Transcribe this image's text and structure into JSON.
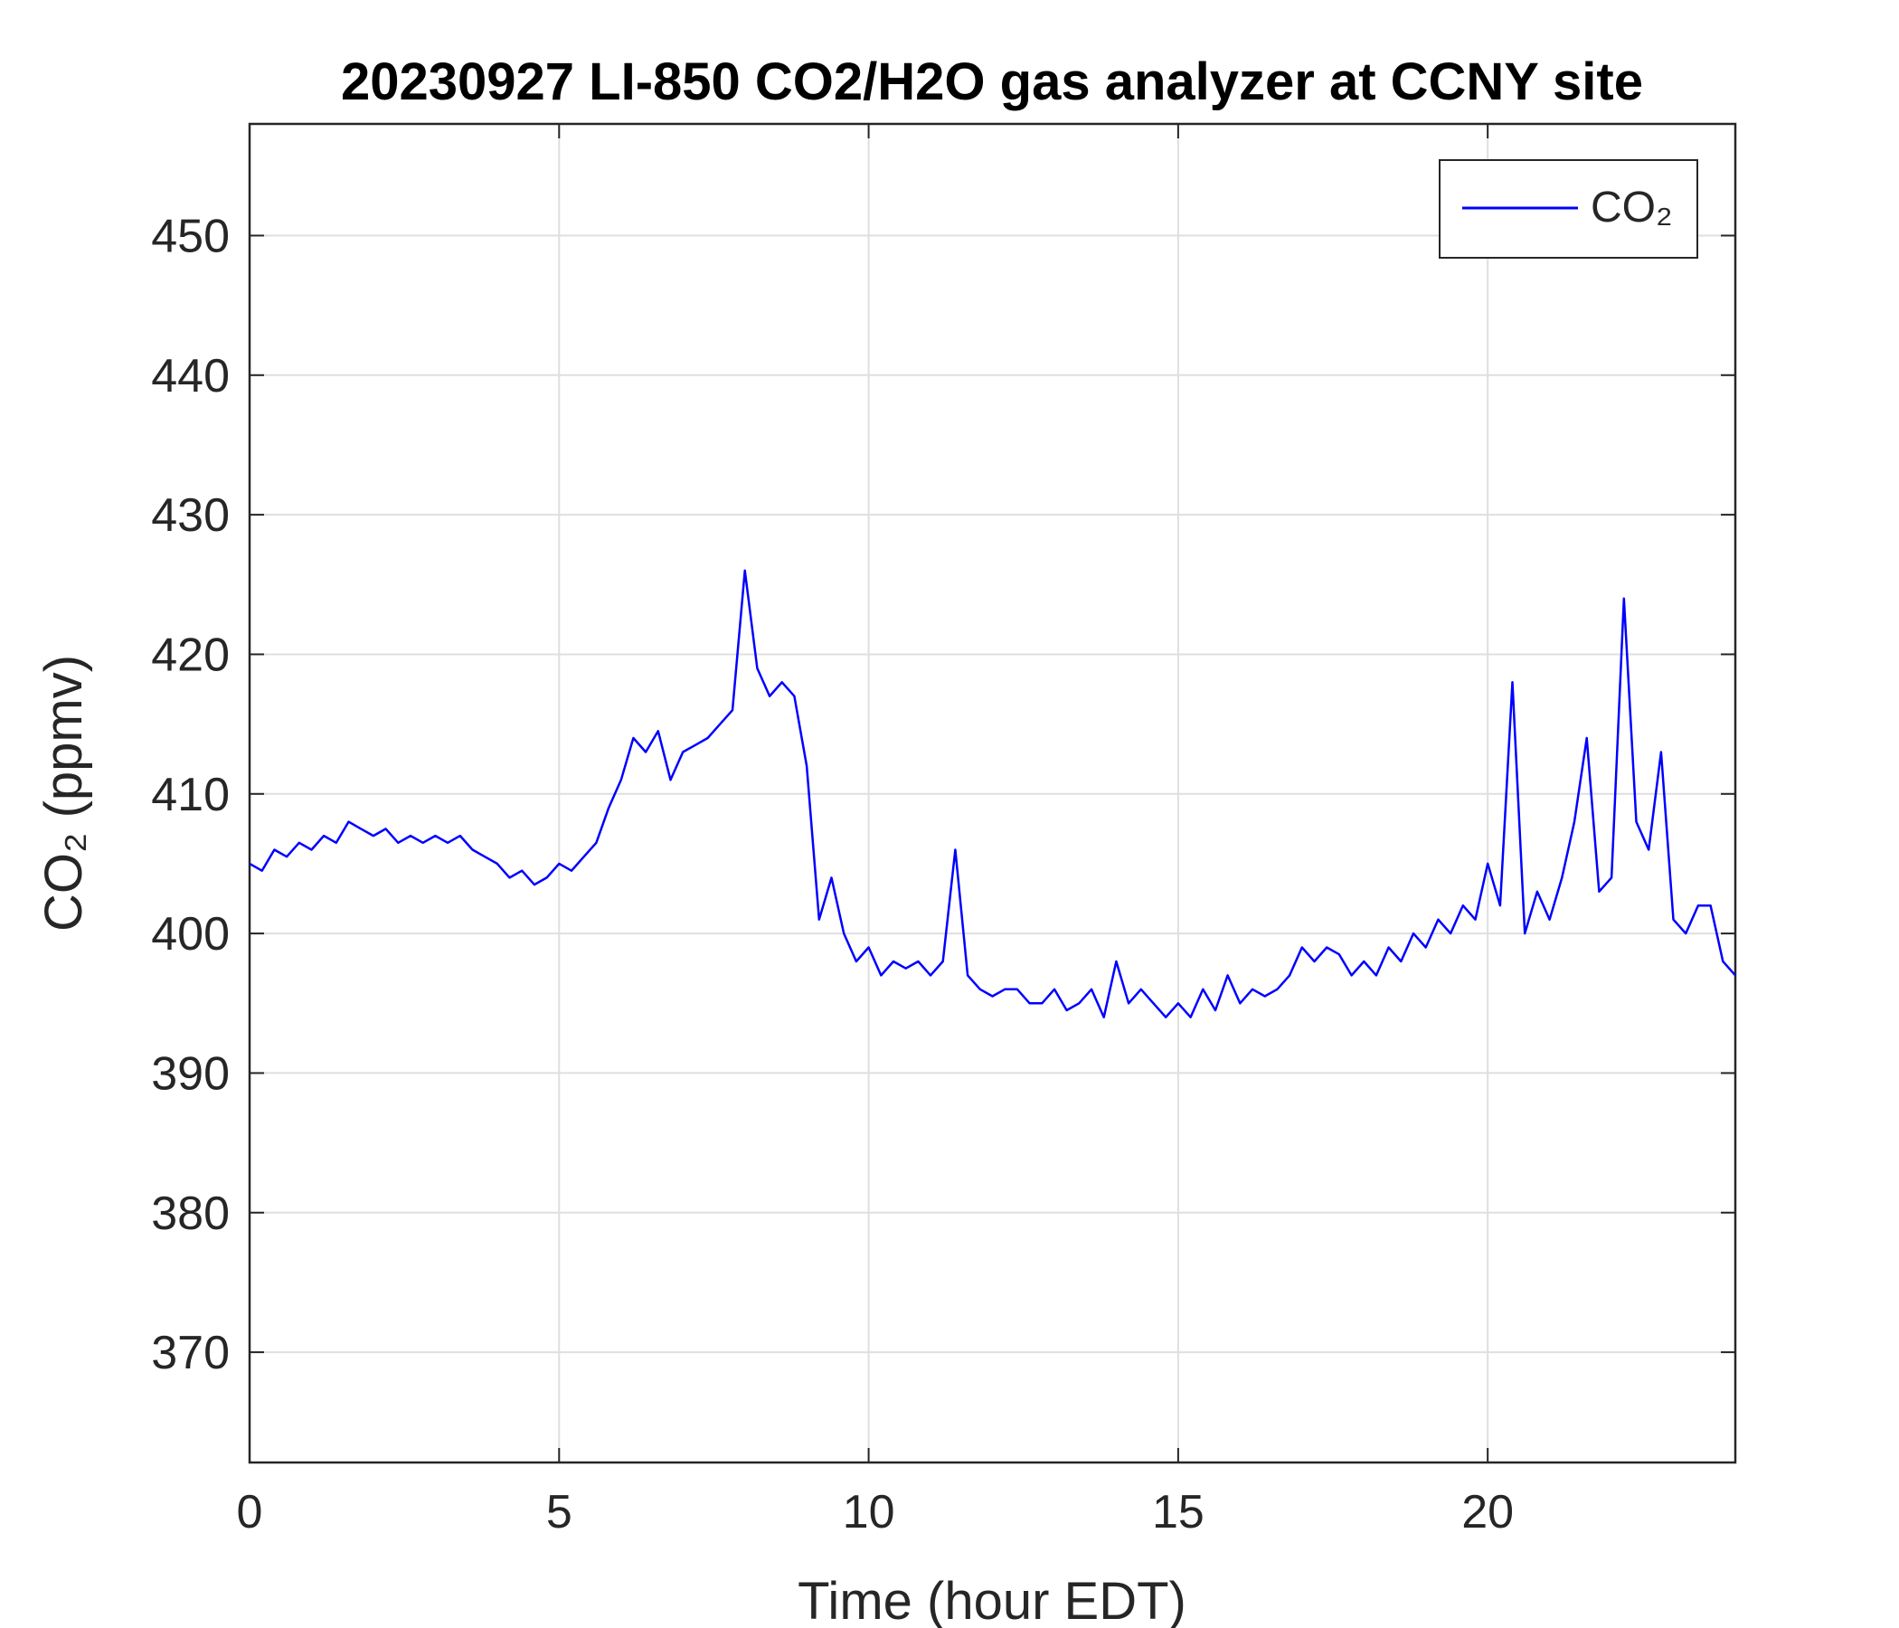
{
  "chart_data": {
    "type": "line",
    "title": "20230927 LI-850 CO2/H2O gas analyzer at CCNY site",
    "xlabel": "Time (hour EDT)",
    "ylabel": "CO₂ (ppmv)",
    "x": [
      0,
      0.2,
      0.4,
      0.6,
      0.8,
      1,
      1.2,
      1.4,
      1.6,
      1.8,
      2,
      2.2,
      2.4,
      2.6,
      2.8,
      3,
      3.2,
      3.4,
      3.6,
      3.8,
      4,
      4.2,
      4.4,
      4.6,
      4.8,
      5,
      5.2,
      5.4,
      5.6,
      5.8,
      6,
      6.2,
      6.4,
      6.6,
      6.8,
      7,
      7.2,
      7.4,
      7.6,
      7.8,
      8,
      8.2,
      8.4,
      8.6,
      8.8,
      9,
      9.2,
      9.4,
      9.6,
      9.8,
      10,
      10.2,
      10.4,
      10.6,
      10.8,
      11,
      11.2,
      11.4,
      11.6,
      11.8,
      12,
      12.2,
      12.4,
      12.6,
      12.8,
      13,
      13.2,
      13.4,
      13.6,
      13.8,
      14,
      14.2,
      14.4,
      14.6,
      14.8,
      15,
      15.2,
      15.4,
      15.6,
      15.8,
      16,
      16.2,
      16.4,
      16.6,
      16.8,
      17,
      17.2,
      17.4,
      17.6,
      17.8,
      18,
      18.2,
      18.4,
      18.6,
      18.8,
      19,
      19.2,
      19.4,
      19.6,
      19.8,
      20,
      20.2,
      20.4,
      20.6,
      20.8,
      21,
      21.2,
      21.4,
      21.6,
      21.8,
      22,
      22.2,
      22.4,
      22.6,
      22.8,
      23,
      23.2,
      23.4,
      23.6,
      23.8,
      24
    ],
    "series": [
      {
        "name": "CO₂",
        "color": "#0000ff",
        "values": [
          405,
          404.5,
          406,
          405.5,
          406.5,
          406,
          407,
          406.5,
          408,
          407.5,
          407,
          407.5,
          406.5,
          407,
          406.5,
          407,
          406.5,
          407,
          406,
          405.5,
          405,
          404,
          404.5,
          403.5,
          404,
          405,
          404.5,
          405.5,
          406.5,
          409,
          411,
          414,
          413,
          414.5,
          411,
          413,
          413.5,
          414,
          415,
          416,
          426,
          419,
          417,
          418,
          417,
          412,
          401,
          404,
          400,
          398,
          399,
          397,
          398,
          397.5,
          398,
          397,
          398,
          406,
          397,
          396,
          395.5,
          396,
          396,
          395,
          395,
          396,
          394.5,
          395,
          396,
          394,
          398,
          395,
          396,
          395,
          394,
          395,
          394,
          396,
          394.5,
          397,
          395,
          396,
          395.5,
          396,
          397,
          399,
          398,
          399,
          398.5,
          397,
          398,
          397,
          399,
          398,
          400,
          399,
          401,
          400,
          402,
          401,
          405,
          402,
          418,
          400,
          403,
          401,
          404,
          408,
          414,
          403,
          404,
          424,
          408,
          406,
          413,
          401,
          400,
          402,
          402,
          398,
          397
        ]
      }
    ],
    "xlim": [
      0,
      24
    ],
    "xticks": [
      0,
      5,
      10,
      15,
      20
    ],
    "ylim": [
      362.1,
      458
    ],
    "yticks": [
      370,
      380,
      390,
      400,
      410,
      420,
      430,
      440,
      450
    ],
    "grid": true,
    "legend": "upper right"
  }
}
